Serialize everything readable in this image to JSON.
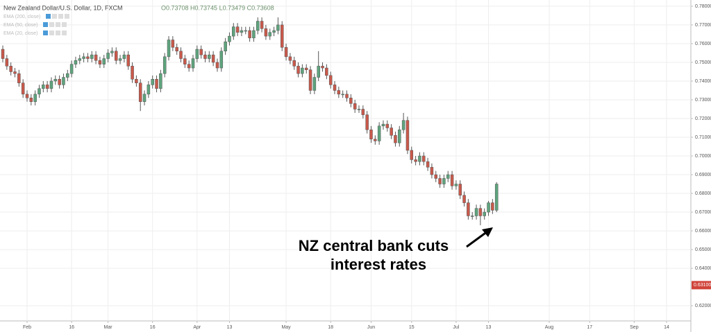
{
  "chart_data": {
    "type": "candlestick",
    "title": "New Zealand Dollar/U.S. Dollar, 1D, FXCM",
    "ohlc_label": "O0.73708 H0.73745 L0.73479 C0.73608",
    "indicators": [
      "EMA (200, close)",
      "EMA (50, close)",
      "EMA (20, close)"
    ],
    "annotation": [
      "NZ central bank cuts",
      "interest rates"
    ],
    "up_color": "#5ea47d",
    "down_color": "#c9594b",
    "grid": true,
    "xlim": [
      -0.69,
      170
    ],
    "xticks": [
      {
        "value": 6,
        "label": "Feb"
      },
      {
        "value": 17,
        "label": "16"
      },
      {
        "value": 26,
        "label": "Mar"
      },
      {
        "value": 37,
        "label": "16"
      },
      {
        "value": 48,
        "label": "Apr"
      },
      {
        "value": 56,
        "label": "13"
      },
      {
        "value": 70,
        "label": "May"
      },
      {
        "value": 81,
        "label": "18"
      },
      {
        "value": 91,
        "label": "Jun"
      },
      {
        "value": 101,
        "label": "15"
      },
      {
        "value": 112,
        "label": "Jul"
      },
      {
        "value": 120,
        "label": "13"
      },
      {
        "value": 135,
        "label": "Aug"
      },
      {
        "value": 145,
        "label": "17"
      },
      {
        "value": 156,
        "label": "Sep"
      },
      {
        "value": 164,
        "label": "14"
      }
    ],
    "ylim": [
      0.6119,
      0.7833
    ],
    "yticks": [
      {
        "value": 0.78,
        "label": "0.78000"
      },
      {
        "value": 0.77,
        "label": "0.77000"
      },
      {
        "value": 0.76,
        "label": "0.76000"
      },
      {
        "value": 0.75,
        "label": "0.75000"
      },
      {
        "value": 0.74,
        "label": "0.74000"
      },
      {
        "value": 0.73,
        "label": "0.73000"
      },
      {
        "value": 0.72,
        "label": "0.72000"
      },
      {
        "value": 0.71,
        "label": "0.71000"
      },
      {
        "value": 0.7,
        "label": "0.70000"
      },
      {
        "value": 0.69,
        "label": "0.69000"
      },
      {
        "value": 0.68,
        "label": "0.68000"
      },
      {
        "value": 0.67,
        "label": "0.67000"
      },
      {
        "value": 0.66,
        "label": "0.66000"
      },
      {
        "value": 0.65,
        "label": "0.65000"
      },
      {
        "value": 0.64,
        "label": "0.64000"
      },
      {
        "value": 0.62,
        "label": "0.62000"
      }
    ],
    "last_price": {
      "value": 0.631,
      "label": "0.63100"
    },
    "open": [
      0.757,
      0.752,
      0.748,
      0.745,
      0.744,
      0.739,
      0.733,
      0.731,
      0.729,
      0.733,
      0.736,
      0.738,
      0.736,
      0.74,
      0.741,
      0.738,
      0.742,
      0.744,
      0.749,
      0.751,
      0.752,
      0.753,
      0.752,
      0.754,
      0.751,
      0.749,
      0.752,
      0.755,
      0.756,
      0.751,
      0.752,
      0.754,
      0.748,
      0.741,
      0.739,
      0.729,
      0.733,
      0.738,
      0.741,
      0.736,
      0.744,
      0.753,
      0.762,
      0.758,
      0.756,
      0.752,
      0.749,
      0.747,
      0.752,
      0.757,
      0.754,
      0.752,
      0.754,
      0.75,
      0.747,
      0.756,
      0.761,
      0.764,
      0.769,
      0.766,
      0.767,
      0.767,
      0.763,
      0.767,
      0.772,
      0.768,
      0.764,
      0.766,
      0.767,
      0.77,
      0.758,
      0.753,
      0.751,
      0.748,
      0.744,
      0.747,
      0.746,
      0.735,
      0.742,
      0.748,
      0.747,
      0.743,
      0.738,
      0.735,
      0.733,
      0.733,
      0.731,
      0.728,
      0.725,
      0.725,
      0.722,
      0.714,
      0.709,
      0.708,
      0.716,
      0.717,
      0.715,
      0.711,
      0.707,
      0.714,
      0.719,
      0.703,
      0.698,
      0.697,
      0.7,
      0.697,
      0.694,
      0.69,
      0.688,
      0.685,
      0.688,
      0.69,
      0.684,
      0.685,
      0.679,
      0.675,
      0.668,
      0.668,
      0.672,
      0.668,
      0.67,
      0.675,
      0.671
    ],
    "high": [
      0.759,
      0.754,
      0.75,
      0.747,
      0.746,
      0.741,
      0.735,
      0.733,
      0.735,
      0.738,
      0.74,
      0.74,
      0.742,
      0.743,
      0.743,
      0.744,
      0.746,
      0.751,
      0.753,
      0.754,
      0.755,
      0.755,
      0.756,
      0.756,
      0.753,
      0.754,
      0.757,
      0.758,
      0.758,
      0.754,
      0.756,
      0.756,
      0.75,
      0.743,
      0.741,
      0.735,
      0.74,
      0.743,
      0.743,
      0.746,
      0.755,
      0.764,
      0.764,
      0.76,
      0.758,
      0.754,
      0.751,
      0.754,
      0.759,
      0.759,
      0.756,
      0.756,
      0.756,
      0.752,
      0.758,
      0.763,
      0.766,
      0.771,
      0.771,
      0.769,
      0.769,
      0.769,
      0.769,
      0.774,
      0.774,
      0.77,
      0.768,
      0.769,
      0.774,
      0.772,
      0.76,
      0.755,
      0.753,
      0.75,
      0.749,
      0.749,
      0.748,
      0.744,
      0.756,
      0.75,
      0.749,
      0.745,
      0.74,
      0.737,
      0.735,
      0.735,
      0.733,
      0.73,
      0.727,
      0.727,
      0.724,
      0.716,
      0.711,
      0.718,
      0.719,
      0.719,
      0.717,
      0.713,
      0.716,
      0.723,
      0.721,
      0.705,
      0.7,
      0.702,
      0.702,
      0.699,
      0.696,
      0.692,
      0.69,
      0.69,
      0.692,
      0.692,
      0.687,
      0.687,
      0.681,
      0.677,
      0.67,
      0.674,
      0.674,
      0.672,
      0.676,
      0.677,
      0.686
    ],
    "low": [
      0.75,
      0.746,
      0.743,
      0.742,
      0.737,
      0.731,
      0.729,
      0.727,
      0.727,
      0.731,
      0.734,
      0.734,
      0.734,
      0.738,
      0.736,
      0.736,
      0.74,
      0.742,
      0.747,
      0.749,
      0.75,
      0.75,
      0.75,
      0.749,
      0.747,
      0.747,
      0.75,
      0.753,
      0.749,
      0.749,
      0.75,
      0.746,
      0.739,
      0.737,
      0.724,
      0.727,
      0.731,
      0.736,
      0.734,
      0.734,
      0.742,
      0.751,
      0.756,
      0.754,
      0.75,
      0.747,
      0.745,
      0.745,
      0.75,
      0.752,
      0.75,
      0.75,
      0.748,
      0.745,
      0.745,
      0.754,
      0.759,
      0.762,
      0.764,
      0.764,
      0.765,
      0.761,
      0.761,
      0.765,
      0.766,
      0.762,
      0.762,
      0.764,
      0.765,
      0.756,
      0.751,
      0.749,
      0.746,
      0.742,
      0.742,
      0.744,
      0.733,
      0.733,
      0.74,
      0.745,
      0.741,
      0.736,
      0.733,
      0.731,
      0.731,
      0.729,
      0.726,
      0.723,
      0.723,
      0.72,
      0.712,
      0.707,
      0.706,
      0.706,
      0.714,
      0.713,
      0.709,
      0.705,
      0.705,
      0.712,
      0.701,
      0.696,
      0.695,
      0.695,
      0.695,
      0.692,
      0.688,
      0.686,
      0.683,
      0.683,
      0.686,
      0.682,
      0.682,
      0.677,
      0.673,
      0.666,
      0.666,
      0.666,
      0.663,
      0.666,
      0.668,
      0.669,
      0.67
    ],
    "close": [
      0.752,
      0.748,
      0.745,
      0.744,
      0.739,
      0.733,
      0.731,
      0.729,
      0.733,
      0.736,
      0.738,
      0.736,
      0.74,
      0.741,
      0.738,
      0.742,
      0.744,
      0.749,
      0.751,
      0.752,
      0.753,
      0.752,
      0.754,
      0.751,
      0.749,
      0.752,
      0.755,
      0.756,
      0.751,
      0.752,
      0.754,
      0.748,
      0.741,
      0.739,
      0.729,
      0.733,
      0.738,
      0.741,
      0.736,
      0.744,
      0.753,
      0.762,
      0.758,
      0.756,
      0.752,
      0.749,
      0.747,
      0.752,
      0.757,
      0.754,
      0.752,
      0.754,
      0.75,
      0.747,
      0.756,
      0.761,
      0.764,
      0.769,
      0.766,
      0.767,
      0.767,
      0.763,
      0.767,
      0.772,
      0.768,
      0.764,
      0.766,
      0.767,
      0.77,
      0.758,
      0.753,
      0.751,
      0.748,
      0.744,
      0.747,
      0.746,
      0.735,
      0.742,
      0.748,
      0.747,
      0.743,
      0.738,
      0.735,
      0.733,
      0.733,
      0.731,
      0.728,
      0.725,
      0.725,
      0.722,
      0.714,
      0.709,
      0.708,
      0.716,
      0.717,
      0.715,
      0.711,
      0.707,
      0.714,
      0.719,
      0.703,
      0.698,
      0.697,
      0.7,
      0.697,
      0.694,
      0.69,
      0.688,
      0.685,
      0.688,
      0.69,
      0.684,
      0.685,
      0.679,
      0.675,
      0.668,
      0.668,
      0.672,
      0.668,
      0.67,
      0.675,
      0.671,
      0.685
    ]
  }
}
